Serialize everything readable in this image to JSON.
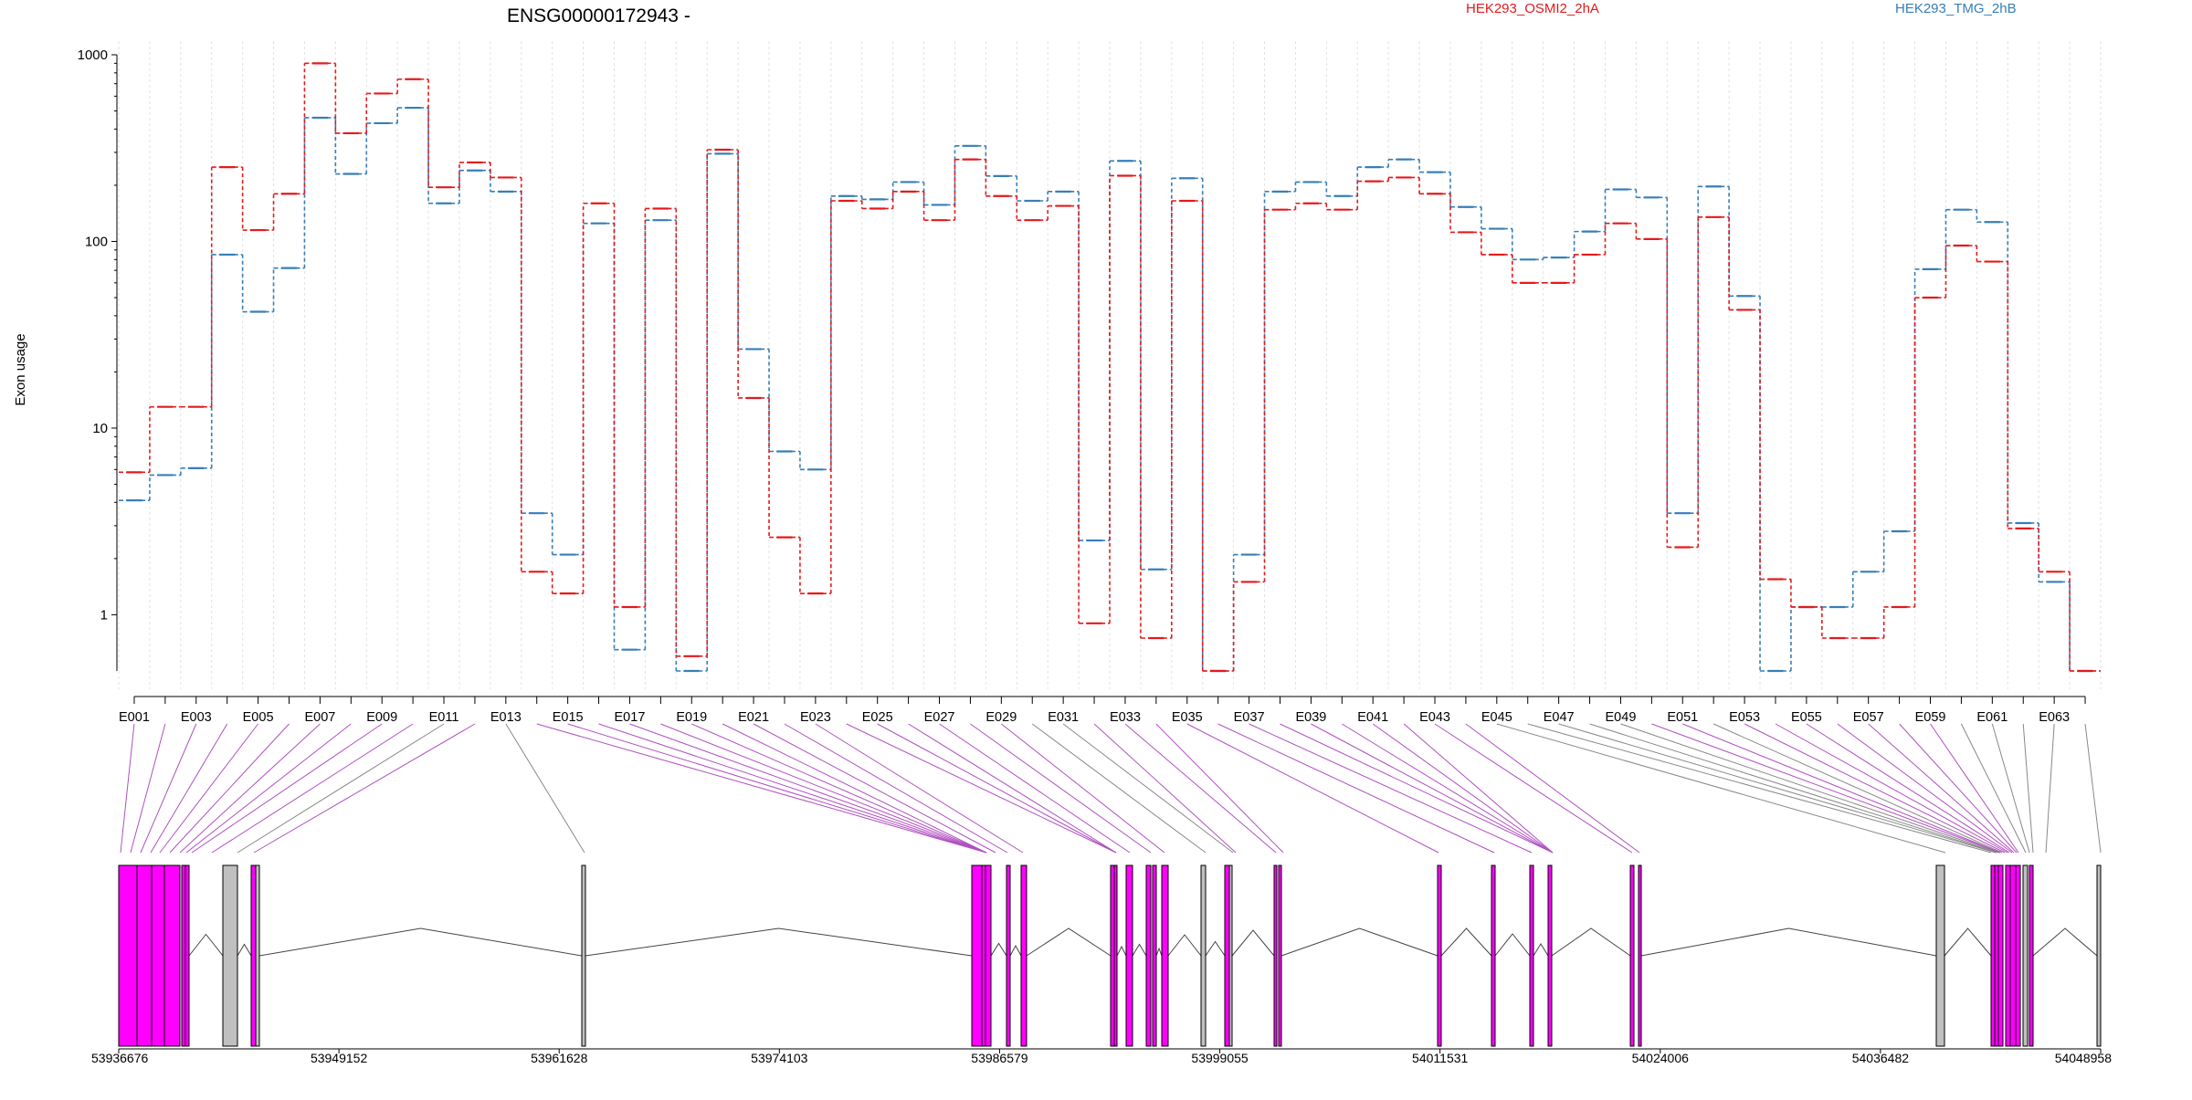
{
  "chart_data": {
    "type": "line",
    "title": "ENSG00000172943 -",
    "xlabel": "",
    "ylabel": "Exon usage",
    "y_scale": "log",
    "ylim": [
      0.5,
      1000
    ],
    "y_ticks": [
      "1",
      "10",
      "100",
      "1000"
    ],
    "grid": "vertical dashed lines at exon boundaries",
    "legend_position": "top",
    "categories": [
      "E001",
      "E002",
      "E003",
      "E004",
      "E005",
      "E006",
      "E007",
      "E008",
      "E009",
      "E010",
      "E011",
      "E012",
      "E013",
      "E014",
      "E015",
      "E016",
      "E017",
      "E018",
      "E019",
      "E020",
      "E021",
      "E022",
      "E023",
      "E024",
      "E025",
      "E026",
      "E027",
      "E028",
      "E029",
      "E030",
      "E031",
      "E032",
      "E033",
      "E034",
      "E035",
      "E036",
      "E037",
      "E038",
      "E039",
      "E040",
      "E041",
      "E042",
      "E043",
      "E044",
      "E045",
      "E046",
      "E047",
      "E048",
      "E049",
      "E050",
      "E051",
      "E052",
      "E053",
      "E054",
      "E055",
      "E056",
      "E057",
      "E058",
      "E059",
      "E060",
      "E061",
      "E062",
      "E063",
      "E064"
    ],
    "series": [
      {
        "name": "HEK293_OSMI2_2hA",
        "color": "#e41a1c",
        "values": [
          5.8,
          13,
          13,
          250,
          115,
          180,
          900,
          380,
          620,
          740,
          195,
          265,
          220,
          1.7,
          1.3,
          160,
          1.1,
          150,
          0.6,
          310,
          14.5,
          2.6,
          1.3,
          165,
          150,
          185,
          130,
          275,
          175,
          130,
          155,
          0.9,
          225,
          0.75,
          165,
          0.5,
          1.5,
          148,
          160,
          148,
          210,
          220,
          180,
          112,
          85,
          60,
          60,
          85,
          125,
          103,
          2.3,
          135,
          43,
          1.55,
          1.1,
          0.75,
          0.75,
          1.1,
          50,
          95,
          78,
          2.9,
          1.7,
          0.5
        ]
      },
      {
        "name": "HEK293_TMG_2hB",
        "color": "#377eb8",
        "values": [
          4.1,
          5.6,
          6.1,
          85,
          42,
          72,
          460,
          230,
          430,
          520,
          160,
          240,
          185,
          3.5,
          2.1,
          125,
          0.65,
          130,
          0.5,
          295,
          26.5,
          7.5,
          6,
          175,
          168,
          208,
          157,
          325,
          224,
          165,
          185,
          2.5,
          270,
          1.75,
          218,
          0.5,
          2.1,
          185,
          208,
          175,
          250,
          275,
          235,
          153,
          117,
          80,
          82,
          113,
          190,
          172,
          3.5,
          197,
          51,
          0.5,
          1.1,
          1.1,
          1.7,
          2.8,
          71,
          148,
          127,
          3.1,
          1.5,
          0.5
        ]
      }
    ],
    "x_exon_label_ticks": [
      "E001",
      "E003",
      "E005",
      "E007",
      "E009",
      "E011",
      "E013",
      "E015",
      "E017",
      "E019",
      "E021",
      "E023",
      "E025",
      "E027",
      "E029",
      "E031",
      "E033",
      "E035",
      "E037",
      "E039",
      "E041",
      "E043",
      "E045",
      "E047",
      "E049",
      "E051",
      "E053",
      "E055",
      "E057",
      "E059",
      "E061",
      "E063"
    ],
    "genomic_axis_ticks": [
      "53936676",
      "53949152",
      "53961628",
      "53974103",
      "53986579",
      "53999055",
      "54011531",
      "54024006",
      "54036482",
      "54048958"
    ],
    "gene_model_exon_colors": {
      "significant": "#ff00ff",
      "not_significant": "#c0c0c0"
    }
  }
}
